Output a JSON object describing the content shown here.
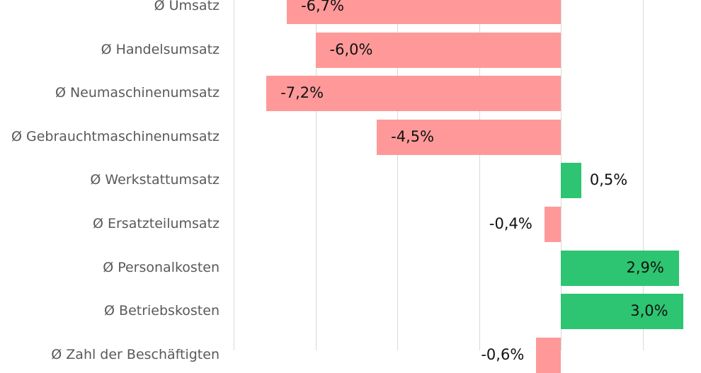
{
  "chart_data": {
    "type": "bar",
    "orientation": "horizontal",
    "title": "",
    "xlabel": "",
    "ylabel": "",
    "xlim": [
      -8,
      4
    ],
    "grid": true,
    "gridline_step": 2,
    "legend": null,
    "colors": {
      "negative": "#ff9999",
      "positive": "#2dc571"
    },
    "categories": [
      "Ø Umsatz",
      "Ø Handelsumsatz",
      "Ø Neumaschinenumsatz",
      "Ø Gebrauchtmaschinenumsatz",
      "Ø Werkstattumsatz",
      "Ø Ersatzteilumsatz",
      "Ø Personalkosten",
      "Ø Betriebskosten",
      "Ø Zahl der Beschäftigten"
    ],
    "values": [
      -6.7,
      -6.0,
      -7.2,
      -4.5,
      0.5,
      -0.4,
      2.9,
      3.0,
      -0.6
    ],
    "labels": [
      "-6,7%",
      "-6,0%",
      "-7,2%",
      "-4,5%",
      "0,5%",
      "-0,4%",
      "2,9%",
      "3,0%",
      "-0,6%"
    ]
  }
}
